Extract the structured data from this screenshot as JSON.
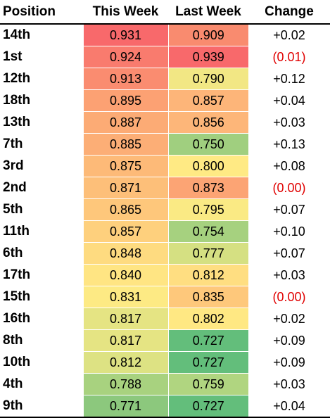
{
  "headers": {
    "position": "Position",
    "this_week": "This Week",
    "last_week": "Last Week",
    "change": "Change"
  },
  "colors": {
    "negative_text": "#e00000",
    "heat_high": "#f8696b",
    "heat_mid": "#ffeb84",
    "heat_low": "#63be7b"
  },
  "rows": [
    {
      "position": "14th",
      "this_week": "0.931",
      "last_week": "0.909",
      "change": "+0.02",
      "this_color": "#f8696b",
      "last_color": "#f98b6f",
      "negative": false
    },
    {
      "position": "1st",
      "this_week": "0.924",
      "last_week": "0.939",
      "change": "(0.01)",
      "this_color": "#f97b6e",
      "last_color": "#f8696b",
      "negative": true
    },
    {
      "position": "12th",
      "this_week": "0.913",
      "last_week": "0.790",
      "change": "+0.12",
      "this_color": "#fa8c70",
      "last_color": "#f2e784",
      "negative": false
    },
    {
      "position": "18th",
      "this_week": "0.895",
      "last_week": "0.857",
      "change": "+0.04",
      "this_color": "#fca173",
      "last_color": "#fdb579",
      "negative": false
    },
    {
      "position": "13th",
      "this_week": "0.887",
      "last_week": "0.856",
      "change": "+0.03",
      "this_color": "#fcab75",
      "last_color": "#fdb679",
      "negative": false
    },
    {
      "position": "7th",
      "this_week": "0.885",
      "last_week": "0.750",
      "change": "+0.13",
      "this_color": "#fcae76",
      "last_color": "#a0cf7f",
      "negative": false
    },
    {
      "position": "3rd",
      "this_week": "0.875",
      "last_week": "0.800",
      "change": "+0.08",
      "this_color": "#fdba78",
      "last_color": "#ffea84",
      "negative": false
    },
    {
      "position": "2nd",
      "this_week": "0.871",
      "last_week": "0.873",
      "change": "(0.00)",
      "this_color": "#fdbf79",
      "last_color": "#fca474",
      "negative": true
    },
    {
      "position": "5th",
      "this_week": "0.865",
      "last_week": "0.795",
      "change": "+0.07",
      "this_color": "#fec77b",
      "last_color": "#faea84",
      "negative": false
    },
    {
      "position": "11th",
      "this_week": "0.857",
      "last_week": "0.754",
      "change": "+0.10",
      "this_color": "#fed07d",
      "last_color": "#a6d17f",
      "negative": false
    },
    {
      "position": "6th",
      "this_week": "0.848",
      "last_week": "0.777",
      "change": "+0.07",
      "this_color": "#fedb80",
      "last_color": "#d5e082",
      "negative": false
    },
    {
      "position": "17th",
      "this_week": "0.840",
      "last_week": "0.812",
      "change": "+0.03",
      "this_color": "#ffe583",
      "last_color": "#ffde81",
      "negative": false
    },
    {
      "position": "15th",
      "this_week": "0.831",
      "last_week": "0.835",
      "change": "(0.00)",
      "this_color": "#fdea84",
      "last_color": "#fec87b",
      "negative": true
    },
    {
      "position": "16th",
      "this_week": "0.817",
      "last_week": "0.802",
      "change": "+0.02",
      "this_color": "#e5e483",
      "last_color": "#ffe883",
      "negative": false
    },
    {
      "position": "8th",
      "this_week": "0.817",
      "last_week": "0.727",
      "change": "+0.09",
      "this_color": "#e5e483",
      "last_color": "#63be7b",
      "negative": false
    },
    {
      "position": "10th",
      "this_week": "0.812",
      "last_week": "0.727",
      "change": "+0.09",
      "this_color": "#ddE283",
      "last_color": "#63be7b",
      "negative": false
    },
    {
      "position": "4th",
      "this_week": "0.788",
      "last_week": "0.759",
      "change": "+0.03",
      "this_color": "#a8d27f",
      "last_color": "#b0d580",
      "negative": false
    },
    {
      "position": "9th",
      "this_week": "0.771",
      "last_week": "0.727",
      "change": "+0.04",
      "this_color": "#8cc87d",
      "last_color": "#63be7b",
      "negative": false
    }
  ]
}
